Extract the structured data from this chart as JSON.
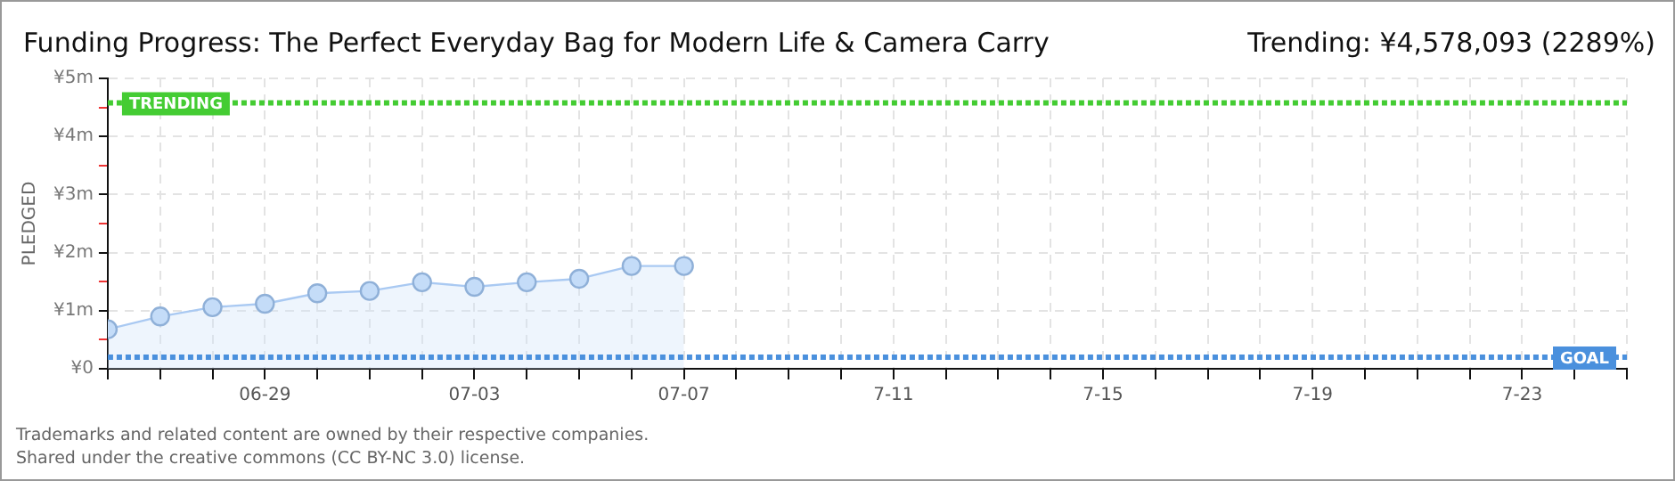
{
  "chart_data": {
    "type": "area",
    "title": "Funding Progress: The Perfect Everyday Bag for Modern Life & Camera Carry",
    "subtitle": "Trending: ¥4,578,093 (2289%)",
    "ylabel": "PLEDGED",
    "x": [
      "--06-26",
      "--06-27",
      "--06-28",
      "--06-29",
      "--06-30",
      "--07-01",
      "--07-02",
      "--07-03",
      "--07-04",
      "--07-05",
      "--07-06",
      "--07-07"
    ],
    "series": [
      {
        "color": "#a9c9f2",
        "values": [
          680000,
          900000,
          1060000,
          1120000,
          1300000,
          1340000,
          1490000,
          1410000,
          1490000,
          1550000,
          1770000,
          1770000
        ]
      }
    ],
    "xlim": [
      "--06-26",
      "--07-25"
    ],
    "xticks": [
      {
        "value": "--06-26",
        "label": null
      },
      {
        "value": "--06-27",
        "label": null
      },
      {
        "value": "--06-28",
        "label": null
      },
      {
        "value": "--06-29",
        "label": "06-29"
      },
      {
        "value": "--06-30",
        "label": null
      },
      {
        "value": "--07-01",
        "label": null
      },
      {
        "value": "--07-02",
        "label": null
      },
      {
        "value": "--07-03",
        "label": "07-03"
      },
      {
        "value": "--07-04",
        "label": null
      },
      {
        "value": "--07-05",
        "label": null
      },
      {
        "value": "--07-06",
        "label": null
      },
      {
        "value": "--07-07",
        "label": "07-07"
      },
      {
        "value": "--07-08",
        "label": null
      },
      {
        "value": "--07-09",
        "label": null
      },
      {
        "value": "--07-10",
        "label": null
      },
      {
        "value": "--07-11",
        "label": "7-11"
      },
      {
        "value": "--07-12",
        "label": null
      },
      {
        "value": "--07-13",
        "label": null
      },
      {
        "value": "--07-14",
        "label": null
      },
      {
        "value": "--07-15",
        "label": "7-15"
      },
      {
        "value": "--07-16",
        "label": null
      },
      {
        "value": "--07-17",
        "label": null
      },
      {
        "value": "--07-18",
        "label": null
      },
      {
        "value": "--07-19",
        "label": "7-19"
      },
      {
        "value": "--07-20",
        "label": null
      },
      {
        "value": "--07-21",
        "label": null
      },
      {
        "value": "--07-22",
        "label": null
      },
      {
        "value": "--07-23",
        "label": "7-23"
      },
      {
        "value": "--07-24",
        "label": null
      },
      {
        "value": "--07-25",
        "label": null
      }
    ],
    "ylim": [
      0,
      5000000
    ],
    "yticks": [
      {
        "value": 0,
        "label": "¥0"
      },
      {
        "value": 500000,
        "label": null
      },
      {
        "value": 1000000,
        "label": "¥1m"
      },
      {
        "value": 1500000,
        "label": null
      },
      {
        "value": 2000000,
        "label": "¥2m"
      },
      {
        "value": 2500000,
        "label": null
      },
      {
        "value": 3000000,
        "label": "¥3m"
      },
      {
        "value": 3500000,
        "label": null
      },
      {
        "value": 4000000,
        "label": "¥4m"
      },
      {
        "value": 4500000,
        "label": null
      },
      {
        "value": 5000000,
        "label": "¥5m"
      }
    ],
    "ref_lines": [
      {
        "axis": "y",
        "value": 4578093,
        "label": "TRENDING",
        "color": "#44cc33",
        "line_style": "dotted"
      },
      {
        "axis": "y",
        "value": 200000,
        "label": "GOAL",
        "color": "#4a90dd",
        "line_style": "dotted"
      }
    ],
    "grid": true,
    "marker": "circle",
    "legend": false,
    "annotations": [
      "Trademarks and related content are owned by their respective companies.",
      "Shared under the creative commons (CC BY-NC 3.0) license."
    ]
  }
}
